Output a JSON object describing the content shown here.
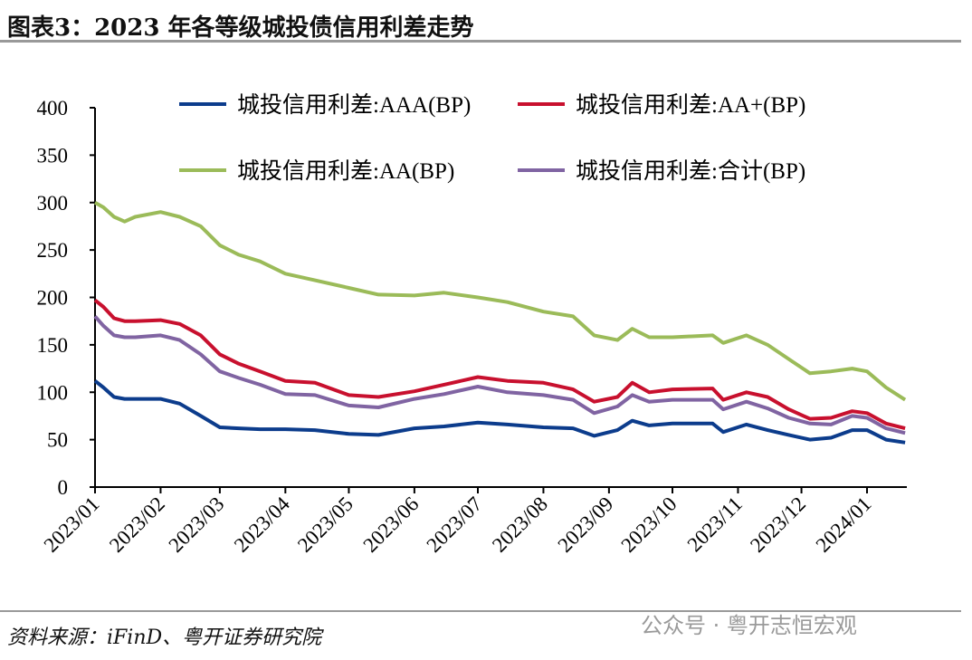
{
  "title": "图表3：2023 年各等级城投债信用利差走势",
  "source": "资料来源：iFinD、粤开证券研究院",
  "watermark": "公众号 · 粤开志恒宏观",
  "chart_data": {
    "type": "line",
    "title": "",
    "xlabel": "",
    "ylabel": "",
    "ylim": [
      0,
      400
    ],
    "yticks": [
      0,
      50,
      100,
      150,
      200,
      250,
      300,
      350,
      400
    ],
    "xticks": [
      "2023/01",
      "2023/02",
      "2023/03",
      "2023/04",
      "2023/05",
      "2023/06",
      "2023/07",
      "2023/08",
      "2023/09",
      "2023/10",
      "2023/11",
      "2023/12",
      "2024/01"
    ],
    "xtick_dates": [
      "2023-01-01",
      "2023-02-01",
      "2023-03-01",
      "2023-04-01",
      "2023-05-01",
      "2023-06-01",
      "2023-07-01",
      "2023-08-01",
      "2023-09-01",
      "2023-10-01",
      "2023-11-01",
      "2023-12-01",
      "2024-01-01"
    ],
    "xlim": [
      "2023-01-01",
      "2024-01-21"
    ],
    "grid": false,
    "legend": "top",
    "x": [
      "2023-01-01",
      "2023-01-05",
      "2023-01-10",
      "2023-01-15",
      "2023-01-20",
      "2023-02-01",
      "2023-02-10",
      "2023-02-20",
      "2023-03-01",
      "2023-03-10",
      "2023-03-20",
      "2023-04-01",
      "2023-04-15",
      "2023-05-01",
      "2023-05-15",
      "2023-06-01",
      "2023-06-15",
      "2023-07-01",
      "2023-07-15",
      "2023-08-01",
      "2023-08-15",
      "2023-08-25",
      "2023-09-05",
      "2023-09-12",
      "2023-09-20",
      "2023-10-01",
      "2023-10-20",
      "2023-10-25",
      "2023-11-05",
      "2023-11-15",
      "2023-11-25",
      "2023-12-05",
      "2023-12-15",
      "2023-12-25",
      "2024-01-01",
      "2024-01-10",
      "2024-01-19"
    ],
    "series": [
      {
        "name": "城投信用利差:AAA(BP)",
        "color": "#0c3c8c",
        "values": [
          112,
          105,
          95,
          93,
          93,
          93,
          88,
          75,
          63,
          62,
          61,
          61,
          60,
          56,
          55,
          62,
          64,
          68,
          66,
          63,
          62,
          54,
          60,
          70,
          65,
          67,
          67,
          58,
          66,
          60,
          55,
          50,
          52,
          60,
          60,
          50,
          47
        ]
      },
      {
        "name": "城投信用利差:AA+(BP)",
        "color": "#c8102e",
        "values": [
          197,
          190,
          178,
          175,
          175,
          176,
          172,
          160,
          140,
          130,
          122,
          112,
          110,
          97,
          95,
          101,
          108,
          116,
          112,
          110,
          103,
          90,
          95,
          110,
          100,
          103,
          104,
          92,
          100,
          95,
          82,
          72,
          73,
          80,
          78,
          67,
          62
        ]
      },
      {
        "name": "城投信用利差:AA(BP)",
        "color": "#9bbb59",
        "values": [
          300,
          295,
          285,
          280,
          285,
          290,
          285,
          275,
          255,
          245,
          238,
          225,
          218,
          210,
          203,
          202,
          205,
          200,
          195,
          185,
          180,
          160,
          155,
          167,
          158,
          158,
          160,
          152,
          160,
          150,
          135,
          120,
          122,
          125,
          122,
          105,
          92
        ]
      },
      {
        "name": "城投信用利差:合计(BP)",
        "color": "#8064a2",
        "values": [
          180,
          170,
          160,
          158,
          158,
          160,
          155,
          140,
          122,
          115,
          108,
          98,
          97,
          86,
          84,
          93,
          98,
          106,
          100,
          97,
          92,
          78,
          85,
          97,
          90,
          92,
          92,
          82,
          90,
          83,
          73,
          67,
          66,
          75,
          73,
          62,
          57
        ]
      }
    ]
  }
}
